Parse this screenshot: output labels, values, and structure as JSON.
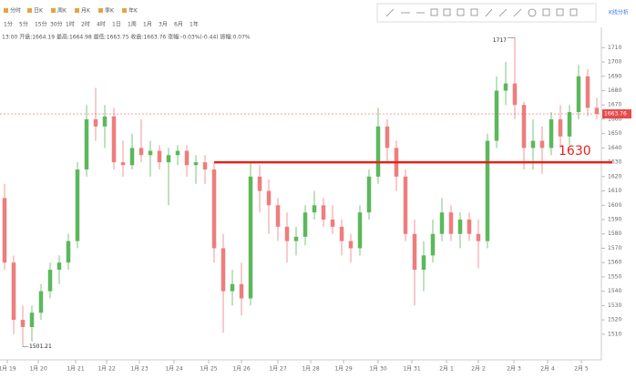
{
  "toolbar": {
    "items": [
      "分时",
      "日K",
      "周K",
      "月K",
      "季K",
      "年K"
    ],
    "periods": [
      "1分",
      "5分",
      "15分",
      "30分",
      "1时",
      "2时",
      "4时",
      "1日",
      "1周",
      "1月",
      "3月",
      "6月",
      "1年"
    ],
    "panel_label": "K线分析"
  },
  "info": "13:00 开盘:1664.19 最高:1664.98 最低:1663.75 收盘:1663.76 涨幅:-0.03%(-0.44) 振幅:0.07%",
  "chart_data": {
    "type": "candlestick",
    "up_color": "#5cb85c",
    "down_color": "#ee7d7d",
    "xlim": [
      -0.5,
      65.5
    ],
    "xticks": [
      {
        "value": 0.3,
        "label": "1月 19"
      },
      {
        "value": 3.7,
        "label": "1月 20"
      },
      {
        "value": 7.8,
        "label": "1月 21"
      },
      {
        "value": 11.2,
        "label": "1月 22"
      },
      {
        "value": 14.8,
        "label": "1月 23"
      },
      {
        "value": 18.6,
        "label": "1月 24"
      },
      {
        "value": 22.4,
        "label": "1月 25"
      },
      {
        "value": 26,
        "label": "1月 26"
      },
      {
        "value": 30,
        "label": "1月 27"
      },
      {
        "value": 33.6,
        "label": "1月 28"
      },
      {
        "value": 37.2,
        "label": "1月 29"
      },
      {
        "value": 41,
        "label": "1月 30"
      },
      {
        "value": 44.7,
        "label": "1月 31"
      },
      {
        "value": 48.5,
        "label": "2月 1"
      },
      {
        "value": 52,
        "label": "2月 2"
      },
      {
        "value": 55.9,
        "label": "2月 3"
      },
      {
        "value": 59.6,
        "label": "2月 4"
      },
      {
        "value": 63.3,
        "label": "2月 5"
      }
    ],
    "ylim": [
      1494,
      1721
    ],
    "yticks": [
      1510,
      1520,
      1530,
      1540,
      1550,
      1560,
      1570,
      1580,
      1590,
      1600,
      1610,
      1620,
      1630,
      1640,
      1650,
      1660,
      1670,
      1680,
      1690,
      1700,
      1710
    ],
    "candles": [
      [
        1605,
        1615,
        1555,
        1560
      ],
      [
        1560,
        1565,
        1510,
        1520
      ],
      [
        1520,
        1530,
        1501.21,
        1515
      ],
      [
        1515,
        1530,
        1505,
        1525
      ],
      [
        1525,
        1545,
        1520,
        1540
      ],
      [
        1540,
        1560,
        1535,
        1555
      ],
      [
        1555,
        1565,
        1545,
        1560
      ],
      [
        1560,
        1580,
        1555,
        1575
      ],
      [
        1575,
        1630,
        1570,
        1625
      ],
      [
        1625,
        1670,
        1620,
        1660
      ],
      [
        1660,
        1682,
        1645,
        1655
      ],
      [
        1655,
        1670,
        1640,
        1662
      ],
      [
        1662,
        1668,
        1625,
        1630
      ],
      [
        1630,
        1645,
        1620,
        1628
      ],
      [
        1628,
        1650,
        1625,
        1640
      ],
      [
        1640,
        1660,
        1630,
        1635
      ],
      [
        1635,
        1645,
        1620,
        1638
      ],
      [
        1638,
        1642,
        1625,
        1630
      ],
      [
        1630,
        1640,
        1600,
        1635
      ],
      [
        1635,
        1642,
        1628,
        1638
      ],
      [
        1638,
        1642,
        1620,
        1628
      ],
      [
        1628,
        1635,
        1615,
        1630
      ],
      [
        1630,
        1635,
        1615,
        1625
      ],
      [
        1625,
        1630,
        1560,
        1570
      ],
      [
        1570,
        1580,
        1511,
        1540
      ],
      [
        1540,
        1555,
        1530,
        1545
      ],
      [
        1545,
        1560,
        1523,
        1535
      ],
      [
        1535,
        1630,
        1530,
        1620
      ],
      [
        1620,
        1628,
        1595,
        1610
      ],
      [
        1610,
        1618,
        1580,
        1600
      ],
      [
        1600,
        1605,
        1575,
        1585
      ],
      [
        1585,
        1595,
        1560,
        1575
      ],
      [
        1575,
        1585,
        1565,
        1578
      ],
      [
        1578,
        1600,
        1572,
        1595
      ],
      [
        1595,
        1610,
        1590,
        1600
      ],
      [
        1600,
        1605,
        1585,
        1590
      ],
      [
        1590,
        1600,
        1580,
        1585
      ],
      [
        1585,
        1590,
        1565,
        1575
      ],
      [
        1575,
        1580,
        1560,
        1570
      ],
      [
        1570,
        1600,
        1565,
        1595
      ],
      [
        1595,
        1625,
        1590,
        1620
      ],
      [
        1620,
        1668,
        1615,
        1655
      ],
      [
        1655,
        1660,
        1630,
        1640
      ],
      [
        1640,
        1645,
        1610,
        1620
      ],
      [
        1620,
        1625,
        1575,
        1580
      ],
      [
        1580,
        1590,
        1530,
        1555
      ],
      [
        1555,
        1575,
        1540,
        1565
      ],
      [
        1565,
        1590,
        1560,
        1580
      ],
      [
        1580,
        1605,
        1575,
        1595
      ],
      [
        1595,
        1600,
        1575,
        1580
      ],
      [
        1580,
        1595,
        1570,
        1590
      ],
      [
        1590,
        1595,
        1575,
        1580
      ],
      [
        1580,
        1590,
        1556,
        1575
      ],
      [
        1575,
        1650,
        1570,
        1645
      ],
      [
        1645,
        1690,
        1640,
        1680
      ],
      [
        1680,
        1700,
        1670,
        1685
      ],
      [
        1685,
        1717,
        1660,
        1670
      ],
      [
        1670,
        1672,
        1625,
        1640
      ],
      [
        1640,
        1660,
        1625,
        1645
      ],
      [
        1645,
        1655,
        1622,
        1640
      ],
      [
        1640,
        1665,
        1635,
        1660
      ],
      [
        1660,
        1670,
        1640,
        1648
      ],
      [
        1648,
        1670,
        1642,
        1665
      ],
      [
        1665,
        1698,
        1660,
        1690
      ],
      [
        1690,
        1695,
        1662,
        1668
      ],
      [
        1668,
        1675,
        1660,
        1663.76
      ]
    ],
    "high_label": "1717",
    "low_label": "1501.21",
    "level": {
      "value": 1630,
      "label": "1630",
      "color": "#e8201a"
    },
    "last_price": {
      "value": 1663.76,
      "label": "1663.76",
      "color": "#e84a4a"
    }
  }
}
